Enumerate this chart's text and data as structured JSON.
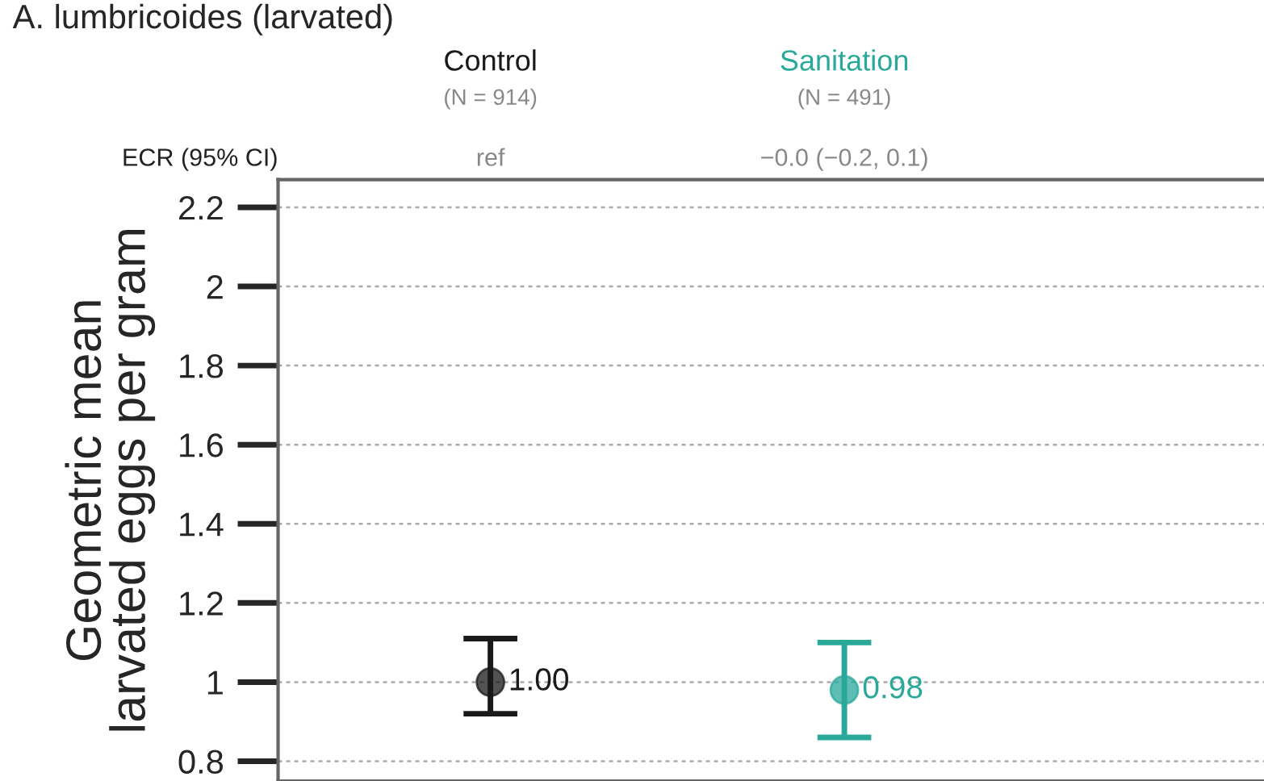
{
  "chart_data": {
    "type": "scatter",
    "title": "A. lumbricoides (larvated)",
    "ylabel": "Geometric mean\nlarvated eggs per gram",
    "categories": [
      "Control",
      "Sanitation"
    ],
    "values": [
      1.0,
      0.98
    ],
    "colors": [
      "#1a1a1a",
      "#2aa89a"
    ],
    "errors": [
      [
        0.92,
        1.11
      ],
      [
        0.86,
        1.1
      ]
    ],
    "value_labels": [
      "1.00",
      "0.98"
    ],
    "annotations": [
      "(N = 914)",
      "(N = 491)",
      "ECR (95% CI)",
      "ref",
      "−0.0 (−0.2, 0.1)"
    ],
    "ylim": [
      0.75,
      2.27
    ],
    "yticks": [
      0.8,
      1,
      1.2,
      1.4,
      1.6,
      1.8,
      2,
      2.2
    ],
    "grid": "y",
    "marker": "circle"
  }
}
